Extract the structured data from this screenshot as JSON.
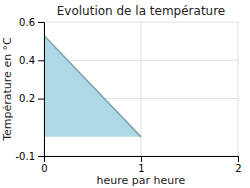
{
  "chart_data": {
    "type": "area",
    "title": "Evolution de la température",
    "xlabel": "heure par heure",
    "ylabel": "Température en °C",
    "x": [
      0,
      1
    ],
    "values": [
      0.53,
      0.0
    ],
    "color": "#add8e6",
    "xlim": [
      0,
      2
    ],
    "ylim": [
      -0.1,
      0.6
    ],
    "xticks": [
      0,
      1,
      2
    ],
    "yticks": [
      -0.1,
      0.2,
      0.4,
      0.6
    ],
    "grid": true
  }
}
